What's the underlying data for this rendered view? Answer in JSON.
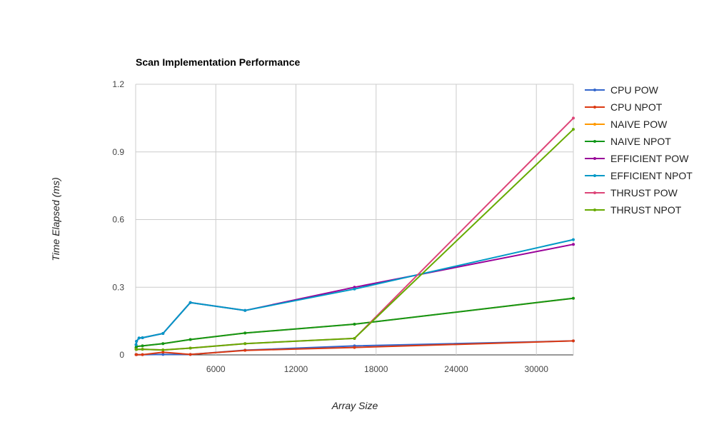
{
  "chart_data": {
    "type": "line",
    "title": "Scan Implementation Performance",
    "xlabel": "Array Size",
    "ylabel": "Time Elapsed (ms)",
    "xlim": [
      0,
      32768
    ],
    "ylim": [
      0,
      1.2
    ],
    "xticks": [
      6000,
      12000,
      18000,
      24000,
      30000
    ],
    "xtick_labels": [
      "6000",
      "12000",
      "18000",
      "24000",
      "30000"
    ],
    "yticks": [
      0,
      0.3,
      0.6,
      0.9,
      1.2
    ],
    "ytick_labels": [
      "0",
      "0.3",
      "0.6",
      "0.9",
      "1.2"
    ],
    "grid": true,
    "legend_position": "right",
    "series": [
      {
        "name": "CPU POW",
        "color": "#3366cc",
        "points": [
          [
            32,
            0.001
          ],
          [
            64,
            0.001
          ],
          [
            512,
            0.001
          ],
          [
            2048,
            0.002
          ],
          [
            4096,
            0.002
          ],
          [
            8192,
            0.021
          ],
          [
            16384,
            0.04
          ],
          [
            32768,
            0.062
          ]
        ]
      },
      {
        "name": "CPU NPOT",
        "color": "#dc3912",
        "points": [
          [
            29,
            0.001
          ],
          [
            61,
            0.001
          ],
          [
            509,
            0.001
          ],
          [
            2045,
            0.012
          ],
          [
            4093,
            0.002
          ],
          [
            8189,
            0.02
          ],
          [
            16381,
            0.033
          ],
          [
            32765,
            0.062
          ]
        ]
      },
      {
        "name": "NAIVE POW",
        "color": "#ff9900",
        "points": [
          [
            32,
            0.033
          ],
          [
            64,
            0.037
          ],
          [
            512,
            0.04
          ],
          [
            2048,
            0.05
          ],
          [
            4096,
            0.068
          ],
          [
            8192,
            0.097
          ],
          [
            16384,
            0.136
          ],
          [
            32768,
            0.251
          ]
        ]
      },
      {
        "name": "NAIVE NPOT",
        "color": "#109618",
        "points": [
          [
            29,
            0.033
          ],
          [
            61,
            0.037
          ],
          [
            509,
            0.04
          ],
          [
            2045,
            0.05
          ],
          [
            4093,
            0.068
          ],
          [
            8189,
            0.097
          ],
          [
            16381,
            0.136
          ],
          [
            32765,
            0.251
          ]
        ]
      },
      {
        "name": "EFFICIENT POW",
        "color": "#990099",
        "points": [
          [
            32,
            0.045
          ],
          [
            64,
            0.06
          ],
          [
            256,
            0.075
          ],
          [
            512,
            0.076
          ],
          [
            2048,
            0.095
          ],
          [
            4096,
            0.232
          ],
          [
            8192,
            0.197
          ],
          [
            16384,
            0.3
          ],
          [
            32768,
            0.49
          ]
        ]
      },
      {
        "name": "EFFICIENT NPOT",
        "color": "#0099c6",
        "points": [
          [
            29,
            0.045
          ],
          [
            61,
            0.06
          ],
          [
            253,
            0.075
          ],
          [
            509,
            0.076
          ],
          [
            2045,
            0.095
          ],
          [
            4093,
            0.232
          ],
          [
            8189,
            0.197
          ],
          [
            16381,
            0.292
          ],
          [
            32765,
            0.511
          ]
        ]
      },
      {
        "name": "THRUST POW",
        "color": "#dd4477",
        "points": [
          [
            32,
            0.025
          ],
          [
            64,
            0.024
          ],
          [
            512,
            0.025
          ],
          [
            2048,
            0.022
          ],
          [
            4096,
            0.03
          ],
          [
            8192,
            0.05
          ],
          [
            16384,
            0.073
          ],
          [
            32768,
            1.05
          ]
        ]
      },
      {
        "name": "THRUST NPOT",
        "color": "#66aa00",
        "points": [
          [
            29,
            0.025
          ],
          [
            61,
            0.024
          ],
          [
            509,
            0.025
          ],
          [
            2045,
            0.022
          ],
          [
            4093,
            0.03
          ],
          [
            8189,
            0.05
          ],
          [
            16381,
            0.073
          ],
          [
            32765,
            1.0
          ]
        ]
      }
    ]
  }
}
